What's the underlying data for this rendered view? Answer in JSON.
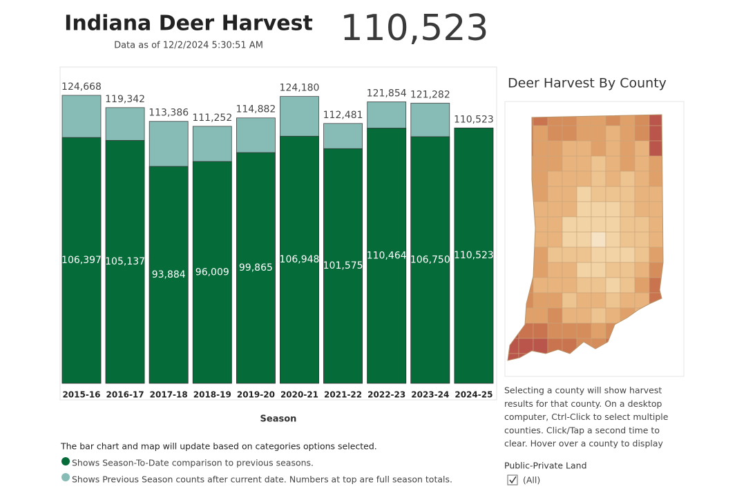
{
  "header": {
    "title": "Indiana Deer Harvest",
    "subtitle": "Data as of  12/2/2024 5:30:51 AM",
    "kpi": "110,523"
  },
  "chart_data": {
    "type": "bar",
    "x_label": "Season",
    "categories": [
      "2015-16",
      "2016-17",
      "2017-18",
      "2018-19",
      "2019-20",
      "2020-21",
      "2021-22",
      "2022-23",
      "2023-24",
      "2024-25"
    ],
    "series": [
      {
        "name": "Shows Previous Season counts after current date.  Numbers at top are full season totals.",
        "color": "#86bcb5",
        "values": [
          124668,
          119342,
          113386,
          111252,
          114882,
          124180,
          112481,
          121854,
          121282,
          110523
        ],
        "value_labels": [
          "124,668",
          "119,342",
          "113,386",
          "111,252",
          "114,882",
          "124,180",
          "112,481",
          "121,854",
          "121,282",
          "110,523"
        ]
      },
      {
        "name": "Shows Season-To-Date comparison to previous seasons.",
        "color": "#056b39",
        "values": [
          106397,
          105137,
          93884,
          96009,
          99865,
          106948,
          101575,
          110464,
          106750,
          110523
        ],
        "value_labels": [
          "106,397",
          "105,137",
          "93,884",
          "96,009",
          "99,865",
          "106,948",
          "101,575",
          "110,464",
          "106,750",
          "110,523"
        ]
      }
    ],
    "note": "The bar chart and map will update based on categories options selected."
  },
  "map": {
    "title": "Deer Harvest By County",
    "help_lines": [
      "Selecting a county will show harvest",
      "results for that county. On a desktop",
      "computer, Ctrl-Click to select multiple",
      "counties. Click/Tap a second time to",
      "clear. Hover over a county to display"
    ],
    "filter_title": "Public-Private Land",
    "filter_option": "(All)"
  }
}
